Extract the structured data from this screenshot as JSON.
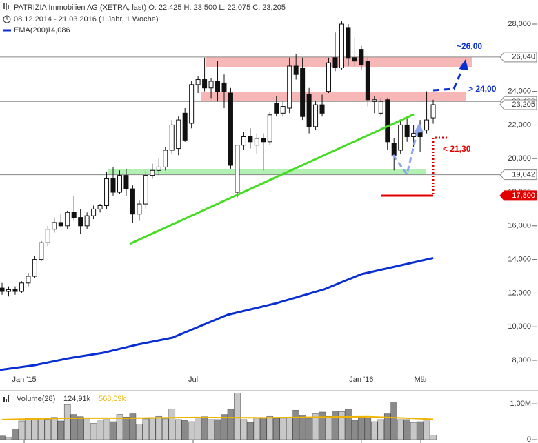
{
  "chart_data": {
    "type": "candlestick",
    "title": "PATRIZIA Immobilien AG (XETRA, last)  O: 22,425  H: 23,500  L: 22,075  C: 23,205",
    "subtitle": "08.12.2014 - 21.03.2016 (1 Jahr, 1 Woche)",
    "open": [
      12300,
      12100,
      12200,
      12100,
      12600,
      13000,
      14000,
      15000,
      15800,
      16200,
      16000,
      16800,
      16500,
      16000,
      16600,
      17000,
      17200,
      18800,
      18000,
      19000,
      18200,
      16700,
      17300,
      19000,
      19300,
      19500,
      20500,
      20600,
      22700,
      22100,
      24400,
      24700,
      24200,
      24600,
      24500,
      23900,
      18000,
      20800,
      21300,
      20800,
      21200,
      21000,
      23300,
      22700,
      23000,
      25500,
      25400,
      23800,
      21900,
      23200,
      24000,
      26000,
      25400,
      27800,
      26000,
      26500,
      25800,
      23400,
      22700,
      23500,
      20900,
      20500,
      22000,
      21300,
      21600,
      21700,
      22425
    ],
    "high": [
      12600,
      12400,
      12400,
      12700,
      13200,
      14200,
      15100,
      16000,
      16500,
      16700,
      16900,
      17800,
      17000,
      16800,
      17200,
      17300,
      19200,
      19500,
      19300,
      19400,
      18400,
      17500,
      19300,
      19700,
      20000,
      20700,
      22300,
      22500,
      23000,
      24600,
      24900,
      26000,
      24800,
      25800,
      25000,
      24200,
      20800,
      21600,
      21800,
      21500,
      21500,
      22800,
      23700,
      23400,
      26000,
      26200,
      26000,
      24200,
      23400,
      23800,
      26000,
      27500,
      28200,
      28000,
      27200,
      26700,
      26000,
      23700,
      23600,
      23600,
      21200,
      22300,
      22500,
      22000,
      22300,
      24000,
      23500
    ],
    "low": [
      11900,
      11800,
      11900,
      12000,
      12400,
      12900,
      13900,
      14800,
      15600,
      15900,
      15800,
      16300,
      15500,
      15800,
      16400,
      16800,
      17000,
      17800,
      17900,
      17800,
      16200,
      16300,
      17000,
      18800,
      19000,
      19300,
      20300,
      20200,
      21000,
      21800,
      23900,
      24000,
      23600,
      23400,
      23000,
      19400,
      17700,
      20500,
      20600,
      20300,
      19300,
      20800,
      22500,
      22500,
      22700,
      24700,
      22300,
      21500,
      21700,
      22500,
      23900,
      25200,
      25300,
      25500,
      25500,
      25300,
      23100,
      22700,
      22500,
      20500,
      19300,
      20300,
      21000,
      20700,
      20400,
      21500,
      22075
    ],
    "close": [
      12100,
      12200,
      12100,
      12600,
      13000,
      14000,
      15000,
      15800,
      16200,
      16000,
      16800,
      16500,
      16000,
      16600,
      17000,
      17200,
      18800,
      18000,
      19000,
      18200,
      16700,
      17300,
      19000,
      19300,
      19500,
      20500,
      22000,
      22300,
      21100,
      24400,
      24700,
      24200,
      24600,
      24000,
      24000,
      19600,
      20800,
      21300,
      21000,
      21200,
      21000,
      22600,
      22700,
      23100,
      25500,
      25000,
      22500,
      21900,
      23200,
      22700,
      25700,
      25400,
      28000,
      26000,
      25800,
      25600,
      23500,
      23500,
      23400,
      21000,
      20200,
      22000,
      21300,
      21500,
      21300,
      22300,
      23205
    ],
    "xlim": [
      -0.32,
      76.24
    ],
    "xticks": [
      {
        "value": 3.38,
        "label": "Jan '15"
      },
      {
        "value": 29.25,
        "label": "Jul"
      },
      {
        "value": 55.0,
        "label": "Jan '16"
      },
      {
        "value": 64.1,
        "label": "Mär"
      }
    ],
    "ylim": [
      6689,
      29107
    ],
    "yticks": [
      {
        "value": 8000,
        "label": "8,000"
      },
      {
        "value": 10000,
        "label": "10,000"
      },
      {
        "value": 12000,
        "label": "12,000"
      },
      {
        "value": 14000,
        "label": "14,000"
      },
      {
        "value": 16000,
        "label": "16,000"
      },
      {
        "value": 18000,
        "label": "18,000"
      },
      {
        "value": 20000,
        "label": "20,000"
      },
      {
        "value": 22000,
        "label": "22,000"
      },
      {
        "value": 24000,
        "label": "24,000"
      },
      {
        "value": 26000,
        "label": "26,000"
      },
      {
        "value": 28000,
        "label": "28,000"
      }
    ],
    "ema": {
      "name": "EMA(200)",
      "color": "#0a2fd0",
      "value_label": "14,086",
      "x": [
        -0.32,
        5,
        10.2,
        15.5,
        20.8,
        26.1,
        34.5,
        42,
        49.3,
        55,
        66
      ],
      "values": [
        7430,
        7715,
        8125,
        8452,
        8944,
        9353,
        10706,
        11400,
        12222,
        13124,
        14086
      ]
    },
    "price_labels": [
      {
        "value": 26040,
        "label": "26,040",
        "line": true
      },
      {
        "value": 23400,
        "label": "23,400",
        "line": true
      },
      {
        "value": 23205,
        "label": "23,205",
        "line": false
      },
      {
        "value": 19042,
        "label": "19,042",
        "line": true
      },
      {
        "value": 17800,
        "label": "17,800",
        "line": false,
        "color": "#e00000"
      }
    ],
    "annotations": [
      "~26,00",
      "> 24,00",
      "< 21,30"
    ],
    "volume": {
      "name": "Volume(28)",
      "value_label": "124,91k",
      "values": [
        100000,
        60000,
        300000,
        520000,
        600000,
        610000,
        580000,
        560000,
        620000,
        520000,
        980000,
        700000,
        640000,
        600000,
        450000,
        550000,
        560000,
        500000,
        700000,
        630000,
        720000,
        430000,
        580000,
        620000,
        650000,
        580000,
        860000,
        560000,
        540000,
        500000,
        620000,
        640000,
        560000,
        560000,
        700000,
        850000,
        1300000,
        560000,
        480000,
        600000,
        620000,
        650000,
        590000,
        600000,
        620000,
        820000,
        680000,
        600000,
        720000,
        770000,
        650000,
        800000,
        780000,
        850000,
        540000,
        640000,
        600000,
        500000,
        560000,
        720000,
        1050000,
        560000,
        560000,
        480000,
        500000,
        560000,
        124910
      ],
      "ylim": [
        0,
        1310000
      ],
      "yticks": [
        0,
        {
          "value": 1000000,
          "label": "1,00M"
        }
      ],
      "average": {
        "color": "#f0b400",
        "value_label": "568,09k",
        "x": [
          0,
          10,
          20,
          30,
          40,
          50,
          56,
          62,
          66
        ],
        "values": [
          560000,
          600000,
          600000,
          620000,
          610000,
          630000,
          640000,
          600000,
          568090
        ]
      }
    }
  }
}
